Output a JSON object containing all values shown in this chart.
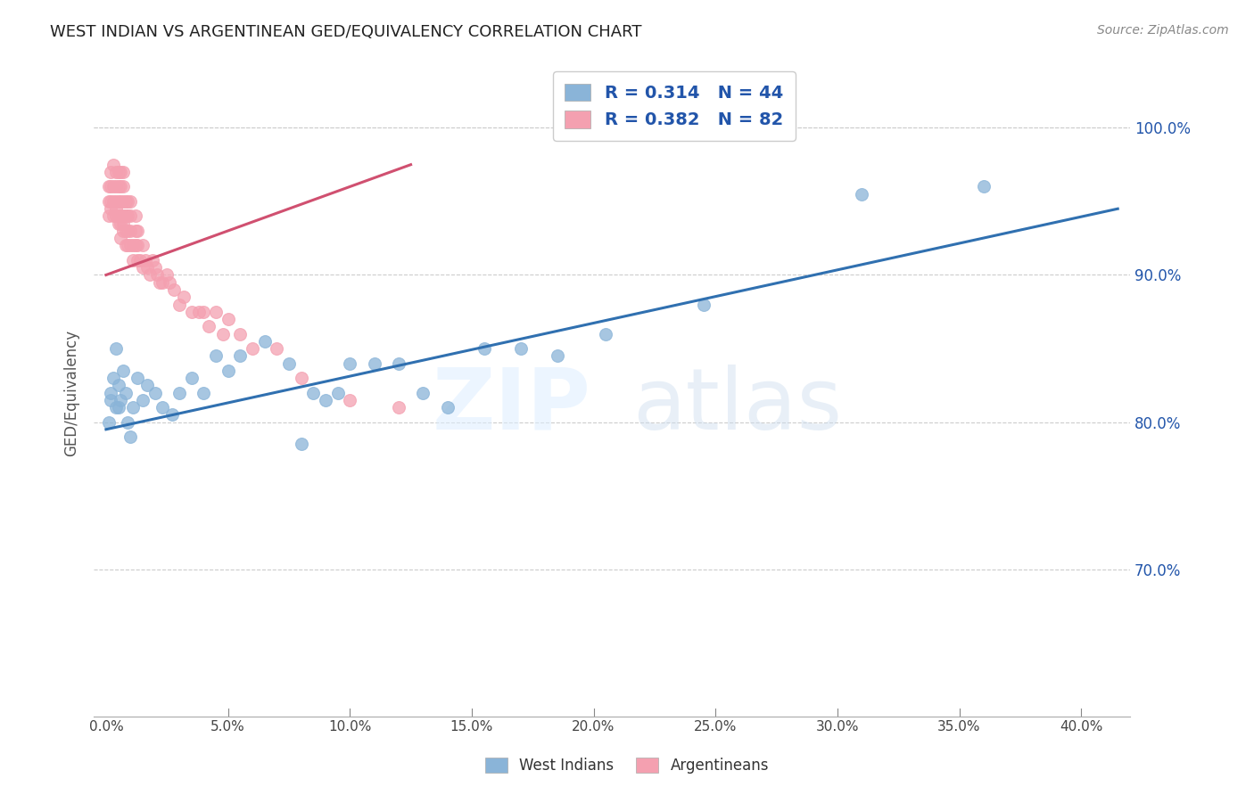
{
  "title": "WEST INDIAN VS ARGENTINEAN GED/EQUIVALENCY CORRELATION CHART",
  "source": "Source: ZipAtlas.com",
  "ylabel": "GED/Equivalency",
  "west_indian_R": 0.314,
  "west_indian_N": 44,
  "argentinean_R": 0.382,
  "argentinean_N": 82,
  "blue_color": "#8ab4d8",
  "pink_color": "#f4a0b0",
  "blue_line_color": "#3070b0",
  "pink_line_color": "#d05070",
  "legend_text_color": "#2255aa",
  "ylim": [
    0.6,
    1.04
  ],
  "xlim": [
    -0.005,
    0.42
  ],
  "ytick_vals": [
    0.7,
    0.8,
    0.9,
    1.0
  ],
  "ytick_labels": [
    "70.0%",
    "80.0%",
    "90.0%",
    "100.0%"
  ],
  "xtick_vals": [
    0.0,
    0.05,
    0.1,
    0.15,
    0.2,
    0.25,
    0.3,
    0.35,
    0.4
  ],
  "xtick_labels": [
    "0.0%",
    "5.0%",
    "10.0%",
    "15.0%",
    "20.0%",
    "25.0%",
    "30.0%",
    "35.0%",
    "40.0%"
  ],
  "west_indians_x": [
    0.001,
    0.002,
    0.002,
    0.003,
    0.004,
    0.004,
    0.005,
    0.005,
    0.006,
    0.007,
    0.008,
    0.009,
    0.01,
    0.011,
    0.013,
    0.015,
    0.017,
    0.02,
    0.023,
    0.027,
    0.03,
    0.035,
    0.04,
    0.045,
    0.05,
    0.055,
    0.065,
    0.075,
    0.08,
    0.085,
    0.09,
    0.095,
    0.1,
    0.11,
    0.12,
    0.13,
    0.14,
    0.155,
    0.17,
    0.185,
    0.205,
    0.245,
    0.31,
    0.36
  ],
  "west_indians_y": [
    0.8,
    0.815,
    0.82,
    0.83,
    0.81,
    0.85,
    0.81,
    0.825,
    0.815,
    0.835,
    0.82,
    0.8,
    0.79,
    0.81,
    0.83,
    0.815,
    0.825,
    0.82,
    0.81,
    0.805,
    0.82,
    0.83,
    0.82,
    0.845,
    0.835,
    0.845,
    0.855,
    0.84,
    0.785,
    0.82,
    0.815,
    0.82,
    0.84,
    0.84,
    0.84,
    0.82,
    0.81,
    0.85,
    0.85,
    0.845,
    0.86,
    0.88,
    0.955,
    0.96
  ],
  "argentineans_x": [
    0.001,
    0.001,
    0.001,
    0.002,
    0.002,
    0.002,
    0.002,
    0.003,
    0.003,
    0.003,
    0.003,
    0.004,
    0.004,
    0.004,
    0.004,
    0.004,
    0.005,
    0.005,
    0.005,
    0.005,
    0.005,
    0.006,
    0.006,
    0.006,
    0.006,
    0.006,
    0.006,
    0.007,
    0.007,
    0.007,
    0.007,
    0.007,
    0.007,
    0.008,
    0.008,
    0.008,
    0.008,
    0.009,
    0.009,
    0.009,
    0.009,
    0.01,
    0.01,
    0.01,
    0.01,
    0.011,
    0.011,
    0.012,
    0.012,
    0.012,
    0.013,
    0.013,
    0.013,
    0.014,
    0.015,
    0.015,
    0.016,
    0.017,
    0.018,
    0.019,
    0.02,
    0.021,
    0.022,
    0.023,
    0.025,
    0.026,
    0.028,
    0.03,
    0.032,
    0.035,
    0.038,
    0.04,
    0.042,
    0.045,
    0.048,
    0.05,
    0.055,
    0.06,
    0.07,
    0.08,
    0.1,
    0.12
  ],
  "argentineans_y": [
    0.94,
    0.95,
    0.96,
    0.945,
    0.95,
    0.96,
    0.97,
    0.94,
    0.95,
    0.96,
    0.975,
    0.94,
    0.945,
    0.95,
    0.96,
    0.97,
    0.935,
    0.94,
    0.95,
    0.96,
    0.97,
    0.925,
    0.935,
    0.94,
    0.95,
    0.96,
    0.97,
    0.93,
    0.935,
    0.94,
    0.95,
    0.96,
    0.97,
    0.92,
    0.93,
    0.94,
    0.95,
    0.92,
    0.93,
    0.94,
    0.95,
    0.92,
    0.93,
    0.94,
    0.95,
    0.91,
    0.92,
    0.92,
    0.93,
    0.94,
    0.91,
    0.92,
    0.93,
    0.91,
    0.905,
    0.92,
    0.91,
    0.905,
    0.9,
    0.91,
    0.905,
    0.9,
    0.895,
    0.895,
    0.9,
    0.895,
    0.89,
    0.88,
    0.885,
    0.875,
    0.875,
    0.875,
    0.865,
    0.875,
    0.86,
    0.87,
    0.86,
    0.85,
    0.85,
    0.83,
    0.815,
    0.81
  ],
  "blue_line_x": [
    0.0,
    0.415
  ],
  "blue_line_y": [
    0.795,
    0.945
  ],
  "pink_line_x": [
    0.0,
    0.125
  ],
  "pink_line_y": [
    0.9,
    0.975
  ]
}
